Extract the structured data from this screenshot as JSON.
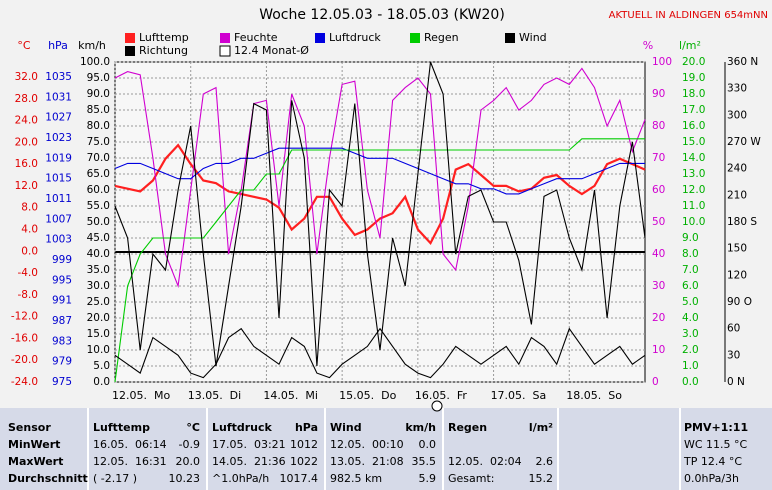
{
  "chart_data": {
    "type": "line",
    "title": "Woche 12.05.03 - 18.05.03 (KW20)",
    "subtitle": "AKTUELL IN ALDINGEN 654mNN",
    "legend_extra": "12.4 Monat-Ø",
    "x_labels": [
      "12.05.  Mo",
      "13.05.  Di",
      "14.05.  Mi",
      "15.05.  Do",
      "16.05.  Fr",
      "17.05.  Sa",
      "18.05.  So"
    ],
    "axes": [
      {
        "label": "°C",
        "color": "#e00000",
        "ylim": [
          -24,
          32
        ],
        "ticks": [
          {
            "value": 32,
            "label": "32.0"
          },
          {
            "value": 28,
            "label": "28.0"
          },
          {
            "value": 24,
            "label": "24.0"
          },
          {
            "value": 20,
            "label": "20.0"
          },
          {
            "value": 16,
            "label": "16.0"
          },
          {
            "value": 12,
            "label": "12.0"
          },
          {
            "value": 8,
            "label": "8.0"
          },
          {
            "value": 4,
            "label": "4.0"
          },
          {
            "value": 0,
            "label": "0.0"
          },
          {
            "value": -4,
            "label": "-4.0"
          },
          {
            "value": -8,
            "label": "-8.0"
          },
          {
            "value": -12,
            "label": "-12.0"
          },
          {
            "value": -16,
            "label": "-16.0"
          },
          {
            "value": -20,
            "label": "-20.0"
          },
          {
            "value": -24,
            "label": "-24.0"
          }
        ]
      },
      {
        "label": "hPa",
        "color": "#0000d0",
        "ylim": [
          975,
          1035
        ],
        "ticks": [
          1035,
          1031,
          1027,
          1023,
          1019,
          1015,
          1011,
          1007,
          1003,
          999,
          995,
          991,
          987,
          983,
          979,
          975
        ]
      },
      {
        "label": "km/h",
        "color": "#000000",
        "grid": true,
        "ylim": [
          0,
          100
        ],
        "ticks": [
          {
            "value": 100,
            "label": "100.0"
          },
          {
            "value": 95,
            "label": "95.0"
          },
          {
            "value": 90,
            "label": "90.0"
          },
          {
            "value": 85,
            "label": "85.0"
          },
          {
            "value": 80,
            "label": "80.0"
          },
          {
            "value": 75,
            "label": "75.0"
          },
          {
            "value": 70,
            "label": "70.0"
          },
          {
            "value": 65,
            "label": "65.0"
          },
          {
            "value": 60,
            "label": "60.0"
          },
          {
            "value": 55,
            "label": "55.0"
          },
          {
            "value": 50,
            "label": "50.0"
          },
          {
            "value": 45,
            "label": "45.0"
          },
          {
            "value": 40,
            "label": "40.0"
          },
          {
            "value": 35,
            "label": "35.0"
          },
          {
            "value": 30,
            "label": "30.0"
          },
          {
            "value": 25,
            "label": "25.0"
          },
          {
            "value": 20,
            "label": "20.0"
          },
          {
            "value": 15,
            "label": "15.0"
          },
          {
            "value": 10,
            "label": "10.0"
          },
          {
            "value": 5,
            "label": "5.0"
          },
          {
            "value": 0,
            "label": "0.0"
          }
        ]
      },
      {
        "label": "%",
        "color": "#d000d0",
        "ylim": [
          0,
          100
        ],
        "ticks": [
          100,
          90,
          80,
          70,
          60,
          50,
          40,
          30,
          20,
          10,
          0
        ]
      },
      {
        "label": "l/m²",
        "color": "#00b000",
        "ylim": [
          0,
          20
        ],
        "ticks": [
          {
            "value": 20,
            "label": "20.0"
          },
          {
            "value": 19,
            "label": "19.0"
          },
          {
            "value": 18,
            "label": "18.0"
          },
          {
            "value": 17,
            "label": "17.0"
          },
          {
            "value": 16,
            "label": "16.0"
          },
          {
            "value": 15,
            "label": "15.0"
          },
          {
            "value": 14,
            "label": "14.0"
          },
          {
            "value": 13,
            "label": "13.0"
          },
          {
            "value": 12,
            "label": "12.0"
          },
          {
            "value": 11,
            "label": "11.0"
          },
          {
            "value": 10,
            "label": "10.0"
          },
          {
            "value": 9,
            "label": "9.0"
          },
          {
            "value": 8,
            "label": "8.0"
          },
          {
            "value": 7,
            "label": "7.0"
          },
          {
            "value": 6,
            "label": "6.0"
          },
          {
            "value": 5,
            "label": "5.0"
          },
          {
            "value": 4,
            "label": "4.0"
          },
          {
            "value": 3,
            "label": "3.0"
          },
          {
            "value": 2,
            "label": "2.0"
          },
          {
            "value": 1,
            "label": "1.0"
          },
          {
            "value": 0,
            "label": "0.0"
          }
        ]
      },
      {
        "color": "#000000",
        "ylim": [
          0,
          360
        ],
        "ticks": [
          {
            "value": 360,
            "label": "360 N"
          },
          330,
          300,
          {
            "value": 270,
            "label": "270 W"
          },
          240,
          210,
          {
            "value": 180,
            "label": "180 S"
          },
          150,
          120,
          {
            "value": 90,
            "label": "90 O"
          },
          60,
          30,
          {
            "value": 0,
            "label": "0 N"
          }
        ]
      }
    ],
    "series": [
      {
        "name": "Lufttemp",
        "color": "#ff2020",
        "axis": 0,
        "values": [
          12,
          11.5,
          11,
          13,
          17,
          19.5,
          16,
          13,
          12.5,
          11,
          10.5,
          10,
          9.5,
          8,
          4,
          6,
          10,
          10,
          6,
          3,
          4,
          6,
          7,
          10,
          4,
          1.5,
          6,
          15,
          16,
          14,
          12,
          12,
          11,
          11.5,
          13.5,
          14,
          12,
          10.5,
          12,
          16,
          17,
          16,
          15
        ]
      },
      {
        "name": "Feuchte",
        "color": "#d000d0",
        "axis": 3,
        "values": [
          95,
          97,
          96,
          70,
          40,
          30,
          60,
          90,
          92,
          40,
          60,
          87,
          88,
          55,
          90,
          80,
          40,
          70,
          93,
          94,
          60,
          45,
          88,
          92,
          95,
          90,
          40,
          35,
          55,
          85,
          88,
          92,
          85,
          88,
          93,
          95,
          93,
          98,
          92,
          80,
          88,
          72,
          82
        ]
      },
      {
        "name": "Luftdruck",
        "color": "#0000e0",
        "axis": 1,
        "values": [
          1017,
          1018,
          1018,
          1017,
          1016,
          1015,
          1015,
          1017,
          1018,
          1018,
          1019,
          1019,
          1020,
          1021,
          1021,
          1021,
          1021,
          1021,
          1021,
          1020,
          1019,
          1019,
          1019,
          1018,
          1017,
          1016,
          1015,
          1014,
          1014,
          1013,
          1013,
          1012,
          1012,
          1013,
          1014,
          1015,
          1015,
          1015,
          1016,
          1017,
          1018,
          1018,
          1018
        ]
      },
      {
        "name": "Regen",
        "color": "#00cc00",
        "axis": 4,
        "values": [
          0,
          6,
          8,
          9,
          9,
          9,
          9,
          9,
          10,
          11,
          12,
          12,
          13,
          13,
          14.5,
          14.5,
          14.5,
          14.5,
          14.5,
          14.5,
          14.5,
          14.5,
          14.5,
          14.5,
          14.5,
          14.5,
          14.5,
          14.5,
          14.5,
          14.5,
          14.5,
          14.5,
          14.5,
          14.5,
          14.5,
          14.5,
          14.5,
          15.2,
          15.2,
          15.2,
          15.2,
          15.2,
          15.2
        ]
      },
      {
        "name": "Wind",
        "color": "#000000",
        "axis": 2,
        "values": [
          55,
          45,
          10,
          40,
          35,
          60,
          80,
          40,
          5,
          30,
          55,
          87,
          85,
          20,
          88,
          70,
          5,
          60,
          55,
          87,
          40,
          10,
          45,
          30,
          65,
          100,
          90,
          40,
          58,
          60,
          50,
          50,
          38,
          18,
          58,
          60,
          45,
          35,
          60,
          20,
          55,
          75,
          45
        ]
      },
      {
        "name": "Richtung",
        "color": "#000000",
        "axis": 5,
        "values": [
          30,
          20,
          10,
          50,
          40,
          30,
          10,
          5,
          20,
          50,
          60,
          40,
          30,
          20,
          50,
          40,
          10,
          5,
          20,
          30,
          40,
          60,
          40,
          20,
          10,
          5,
          20,
          40,
          30,
          20,
          30,
          40,
          20,
          50,
          40,
          20,
          60,
          40,
          20,
          30,
          40,
          20,
          30
        ]
      }
    ]
  },
  "table": {
    "header": [
      "Sensor",
      "Lufttemp",
      "°C",
      "Luftdruck",
      "hPa",
      "Wind",
      "km/h",
      "Regen",
      "l/m²",
      "PMV+1:11"
    ],
    "rows": [
      [
        "MinWert",
        "16.05.  06:14",
        "-0.9",
        "17.05.  03:21",
        "1012",
        "12.05.  00:10",
        "0.0",
        null,
        null,
        "WC 11.5 °C"
      ],
      [
        "MaxWert",
        "12.05.  16:31",
        "20.0",
        "14.05.  21:36",
        "1022",
        "13.05.  21:08",
        "35.5",
        "12.05.  02:04",
        "2.6",
        "TP 12.4 °C"
      ],
      [
        "Durchschnitt",
        "( -2.17 )",
        "10.23",
        "^1.0hPa/h",
        "1017.4",
        "982.5 km",
        "5.9",
        "Gesamt:",
        "15.2",
        "0.0hPa/3h"
      ]
    ]
  }
}
